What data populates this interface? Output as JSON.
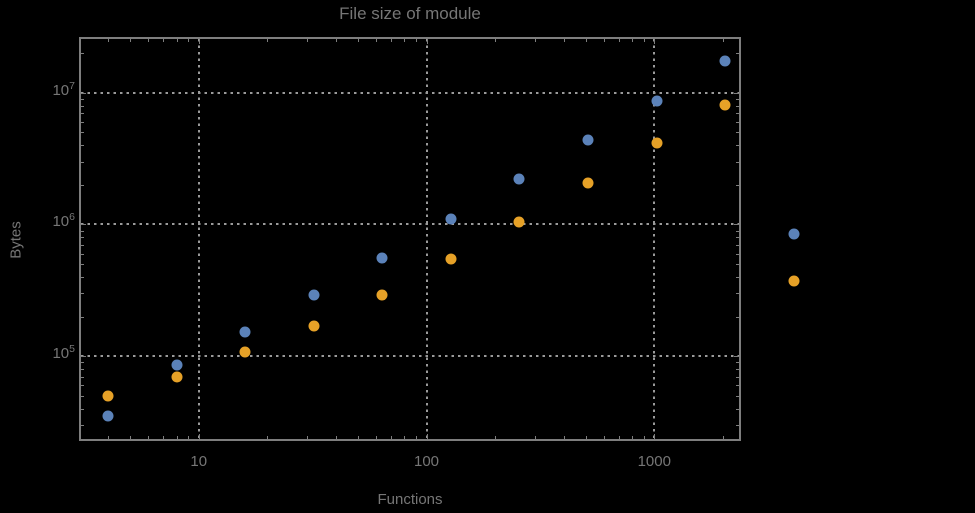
{
  "title": "File size of module",
  "axes": {
    "x_label": "Functions",
    "y_label": "Bytes"
  },
  "colors": {
    "background": "#000000",
    "frame": "#7e7e7e",
    "grid": "#9a9a9a",
    "text": "#767676",
    "series_blue": "#5B82B9",
    "series_orange": "#E6A127"
  },
  "chart_data": {
    "type": "scatter",
    "title": "File size of module",
    "xlabel": "Functions",
    "ylabel": "Bytes",
    "x_scale": "log",
    "y_scale": "log",
    "grid": "dotted gridlines at powers of 10, on",
    "legend": "none",
    "xlim_log10": [
      0.483,
      3.372
    ],
    "ylim_log10": [
      4.3705,
      7.409
    ],
    "x_major_ticks": [
      10,
      100,
      1000
    ],
    "x_tick_labels": [
      "10",
      "100",
      "1000"
    ],
    "y_major_ticks": [
      100000,
      1000000,
      10000000
    ],
    "y_tick_labels": [
      {
        "base": "10",
        "exp": "5"
      },
      {
        "base": "10",
        "exp": "6"
      },
      {
        "base": "10",
        "exp": "7"
      }
    ],
    "x": [
      4,
      8,
      16,
      32,
      64,
      128,
      256,
      512,
      1024,
      2048,
      4096
    ],
    "series": [
      {
        "name": "blue-series",
        "color": "#5B82B9",
        "values": [
          35000,
          85000,
          153000,
          290000,
          553000,
          1110000,
          2220000,
          4370000,
          8730000,
          17500000,
          853000
        ]
      },
      {
        "name": "orange-series",
        "color": "#E6A127",
        "values": [
          49500,
          70000,
          108000,
          170000,
          291000,
          543000,
          1050000,
          2070000,
          4140000,
          8150000,
          371000
        ]
      }
    ],
    "note": "final x=4096 points are drawn outside the right frame edge"
  }
}
